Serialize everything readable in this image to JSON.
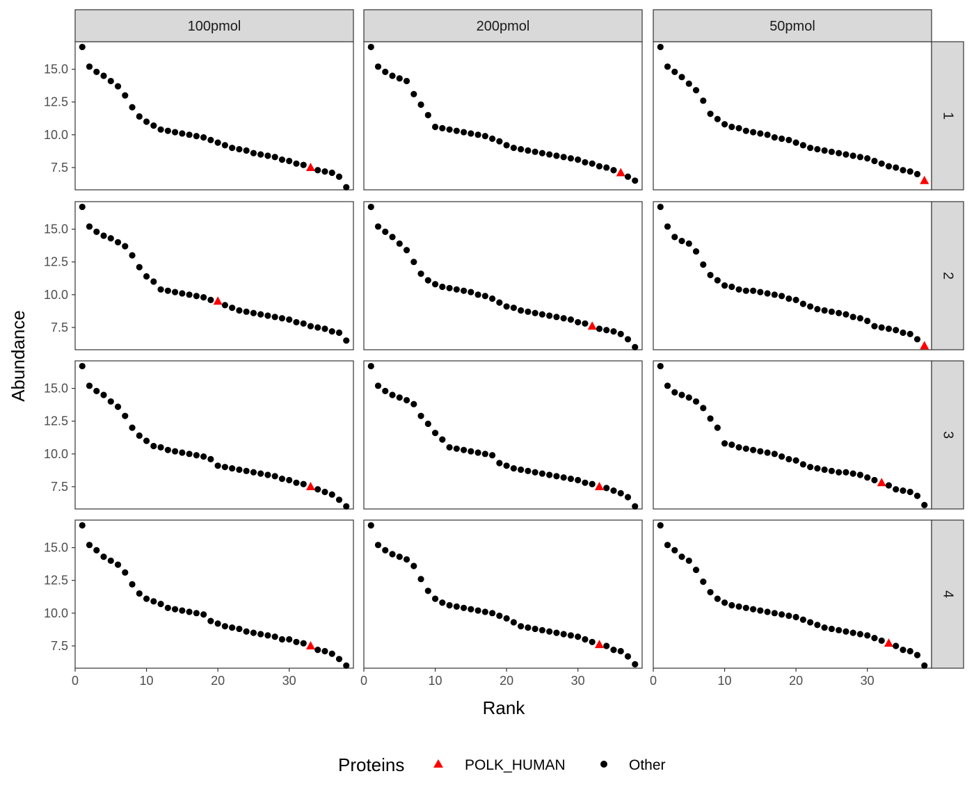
{
  "chart_data": {
    "type": "scatter",
    "facet_columns": [
      "100pmol",
      "200pmol",
      "50pmol"
    ],
    "facet_rows": [
      "1",
      "2",
      "3",
      "4"
    ],
    "xlabel": "Rank",
    "ylabel": "Abundance",
    "xlim": [
      0,
      39
    ],
    "ylim": [
      5.8,
      17.1
    ],
    "x_ticks": [
      0,
      10,
      20,
      30
    ],
    "y_ticks": [
      7.5,
      10.0,
      12.5,
      15.0
    ],
    "x_tick_labels": [
      "0",
      "10",
      "20",
      "30"
    ],
    "y_tick_labels": [
      "7.5",
      "10.0",
      "12.5",
      "15.0"
    ],
    "grid": false,
    "legend": {
      "title": "Proteins",
      "position": "bottom",
      "entries": [
        {
          "name": "POLK_HUMAN",
          "shape": "triangle",
          "color": "#ff0000"
        },
        {
          "name": "Other",
          "shape": "circle",
          "color": "#000000"
        }
      ]
    },
    "panels": [
      {
        "col": "100pmol",
        "row": "1",
        "highlight_rank": 33,
        "values": [
          16.7,
          15.2,
          14.8,
          14.5,
          14.1,
          13.7,
          13.0,
          12.1,
          11.4,
          11.0,
          10.7,
          10.4,
          10.3,
          10.2,
          10.1,
          10.0,
          9.9,
          9.8,
          9.6,
          9.4,
          9.2,
          9.0,
          8.9,
          8.8,
          8.6,
          8.5,
          8.4,
          8.3,
          8.1,
          8.0,
          7.8,
          7.7,
          7.5,
          7.3,
          7.2,
          7.1,
          6.8,
          6.0
        ]
      },
      {
        "col": "200pmol",
        "row": "1",
        "highlight_rank": 36,
        "values": [
          16.7,
          15.2,
          14.8,
          14.5,
          14.3,
          14.1,
          13.1,
          12.3,
          11.5,
          10.6,
          10.5,
          10.4,
          10.3,
          10.2,
          10.1,
          10.0,
          9.9,
          9.7,
          9.5,
          9.2,
          9.0,
          8.9,
          8.8,
          8.7,
          8.6,
          8.5,
          8.4,
          8.3,
          8.2,
          8.1,
          7.9,
          7.8,
          7.6,
          7.5,
          7.3,
          7.1,
          6.8,
          6.5
        ]
      },
      {
        "col": "50pmol",
        "row": "1",
        "highlight_rank": 38,
        "values": [
          16.7,
          15.2,
          14.8,
          14.4,
          13.9,
          13.4,
          12.6,
          11.6,
          11.2,
          10.8,
          10.6,
          10.5,
          10.3,
          10.2,
          10.1,
          10.0,
          9.8,
          9.7,
          9.6,
          9.4,
          9.2,
          9.0,
          8.9,
          8.8,
          8.7,
          8.6,
          8.5,
          8.4,
          8.3,
          8.2,
          8.0,
          7.8,
          7.6,
          7.5,
          7.3,
          7.2,
          7.0,
          6.5
        ]
      },
      {
        "col": "100pmol",
        "row": "2",
        "highlight_rank": 20,
        "values": [
          16.7,
          15.2,
          14.8,
          14.5,
          14.3,
          14.0,
          13.7,
          13.0,
          12.1,
          11.4,
          11.0,
          10.4,
          10.3,
          10.2,
          10.1,
          10.0,
          9.9,
          9.8,
          9.6,
          9.5,
          9.2,
          9.0,
          8.8,
          8.7,
          8.6,
          8.5,
          8.4,
          8.3,
          8.2,
          8.1,
          7.9,
          7.8,
          7.6,
          7.5,
          7.4,
          7.2,
          7.1,
          6.5
        ]
      },
      {
        "col": "200pmol",
        "row": "2",
        "highlight_rank": 32,
        "values": [
          16.7,
          15.2,
          14.8,
          14.4,
          13.9,
          13.4,
          12.5,
          11.6,
          11.1,
          10.8,
          10.6,
          10.5,
          10.4,
          10.3,
          10.2,
          10.0,
          9.9,
          9.7,
          9.4,
          9.1,
          9.0,
          8.8,
          8.7,
          8.6,
          8.5,
          8.4,
          8.3,
          8.2,
          8.1,
          7.9,
          7.8,
          7.6,
          7.4,
          7.3,
          7.2,
          7.0,
          6.6,
          6.0
        ]
      },
      {
        "col": "50pmol",
        "row": "2",
        "highlight_rank": 38,
        "values": [
          16.7,
          15.2,
          14.4,
          14.1,
          13.9,
          13.3,
          12.3,
          11.5,
          11.1,
          10.7,
          10.6,
          10.4,
          10.3,
          10.3,
          10.2,
          10.1,
          10.0,
          9.9,
          9.7,
          9.6,
          9.3,
          9.1,
          8.9,
          8.8,
          8.7,
          8.6,
          8.5,
          8.3,
          8.2,
          8.0,
          7.6,
          7.5,
          7.4,
          7.3,
          7.1,
          7.0,
          6.6,
          6.1
        ]
      },
      {
        "col": "100pmol",
        "row": "3",
        "highlight_rank": 33,
        "values": [
          16.7,
          15.2,
          14.8,
          14.5,
          14.0,
          13.6,
          12.9,
          12.0,
          11.4,
          11.0,
          10.6,
          10.5,
          10.3,
          10.2,
          10.1,
          10.0,
          9.9,
          9.8,
          9.6,
          9.1,
          9.0,
          8.9,
          8.8,
          8.7,
          8.6,
          8.5,
          8.4,
          8.3,
          8.1,
          8.0,
          7.8,
          7.7,
          7.5,
          7.3,
          7.1,
          6.9,
          6.5,
          6.0
        ]
      },
      {
        "col": "200pmol",
        "row": "3",
        "highlight_rank": 33,
        "values": [
          16.7,
          15.2,
          14.8,
          14.5,
          14.3,
          14.1,
          13.8,
          12.9,
          12.3,
          11.6,
          11.1,
          10.5,
          10.4,
          10.3,
          10.2,
          10.1,
          10.0,
          9.9,
          9.3,
          9.1,
          8.9,
          8.8,
          8.7,
          8.6,
          8.5,
          8.4,
          8.3,
          8.2,
          8.1,
          8.0,
          7.8,
          7.7,
          7.5,
          7.4,
          7.2,
          7.0,
          6.7,
          6.0
        ]
      },
      {
        "col": "50pmol",
        "row": "3",
        "highlight_rank": 32,
        "values": [
          16.7,
          15.2,
          14.7,
          14.5,
          14.3,
          14.0,
          13.5,
          12.7,
          12.0,
          10.8,
          10.7,
          10.5,
          10.4,
          10.3,
          10.2,
          10.1,
          10.0,
          9.8,
          9.6,
          9.5,
          9.2,
          9.0,
          8.9,
          8.8,
          8.7,
          8.6,
          8.6,
          8.5,
          8.4,
          8.2,
          8.0,
          7.8,
          7.6,
          7.3,
          7.2,
          7.1,
          6.8,
          6.1
        ]
      },
      {
        "col": "100pmol",
        "row": "4",
        "highlight_rank": 33,
        "values": [
          16.7,
          15.2,
          14.8,
          14.3,
          14.0,
          13.7,
          13.1,
          12.2,
          11.5,
          11.1,
          10.9,
          10.7,
          10.4,
          10.3,
          10.2,
          10.1,
          10.0,
          9.9,
          9.4,
          9.2,
          9.0,
          8.9,
          8.8,
          8.6,
          8.5,
          8.4,
          8.3,
          8.2,
          8.0,
          8.0,
          7.8,
          7.7,
          7.5,
          7.2,
          7.1,
          6.9,
          6.5,
          6.0
        ]
      },
      {
        "col": "200pmol",
        "row": "4",
        "highlight_rank": 33,
        "values": [
          16.7,
          15.2,
          14.8,
          14.5,
          14.3,
          14.1,
          13.6,
          12.6,
          11.7,
          11.1,
          10.8,
          10.6,
          10.5,
          10.4,
          10.3,
          10.2,
          10.1,
          10.0,
          9.8,
          9.6,
          9.3,
          9.0,
          8.9,
          8.8,
          8.7,
          8.6,
          8.5,
          8.4,
          8.3,
          8.2,
          8.0,
          7.8,
          7.6,
          7.5,
          7.2,
          7.1,
          6.7,
          6.1
        ]
      },
      {
        "col": "50pmol",
        "row": "4",
        "highlight_rank": 33,
        "values": [
          16.7,
          15.2,
          14.8,
          14.3,
          14.0,
          13.3,
          12.4,
          11.6,
          11.1,
          10.8,
          10.6,
          10.5,
          10.4,
          10.3,
          10.2,
          10.1,
          10.0,
          9.9,
          9.8,
          9.7,
          9.5,
          9.3,
          9.1,
          8.9,
          8.8,
          8.7,
          8.6,
          8.5,
          8.4,
          8.3,
          8.1,
          7.9,
          7.7,
          7.5,
          7.2,
          7.1,
          6.8,
          6.0
        ]
      }
    ]
  }
}
